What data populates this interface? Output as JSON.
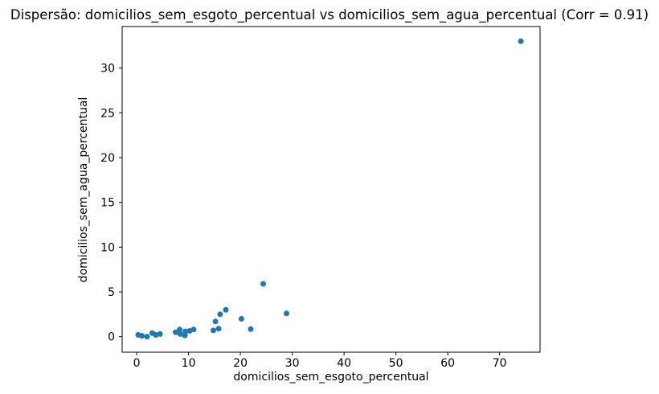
{
  "chart_data": {
    "type": "scatter",
    "title": "Dispersão: domicilios_sem_esgoto_percentual vs domicilios_sem_agua_percentual (Corr = 0.91)",
    "xlabel": "domicilios_sem_esgoto_percentual",
    "ylabel": "domicilios_sem_agua_percentual",
    "correlation": 0.91,
    "marker_color": "#1f77b4",
    "spine_color": "#000000",
    "background_color": "#ffffff",
    "grid": false,
    "legend": "none",
    "xlim": [
      -2.8,
      77.8
    ],
    "ylim": [
      -1.73,
      34.64
    ],
    "xticks": [
      0,
      10,
      20,
      30,
      40,
      50,
      60,
      70
    ],
    "yticks": [
      0,
      5,
      10,
      15,
      20,
      25,
      30
    ],
    "points": [
      [
        0.3,
        0.2
      ],
      [
        1.0,
        0.1
      ],
      [
        2.0,
        0.0
      ],
      [
        3.0,
        0.4
      ],
      [
        3.7,
        0.2
      ],
      [
        4.5,
        0.3
      ],
      [
        7.5,
        0.5
      ],
      [
        8.3,
        0.8
      ],
      [
        8.4,
        0.3
      ],
      [
        9.3,
        0.15
      ],
      [
        9.4,
        0.6
      ],
      [
        10.2,
        0.65
      ],
      [
        11.0,
        0.8
      ],
      [
        14.8,
        0.7
      ],
      [
        15.2,
        1.7
      ],
      [
        15.8,
        0.9
      ],
      [
        16.1,
        2.5
      ],
      [
        17.2,
        3.0
      ],
      [
        20.2,
        2.0
      ],
      [
        22.0,
        0.85
      ],
      [
        24.4,
        5.9
      ],
      [
        28.9,
        2.6
      ],
      [
        74.1,
        33.0
      ]
    ]
  }
}
